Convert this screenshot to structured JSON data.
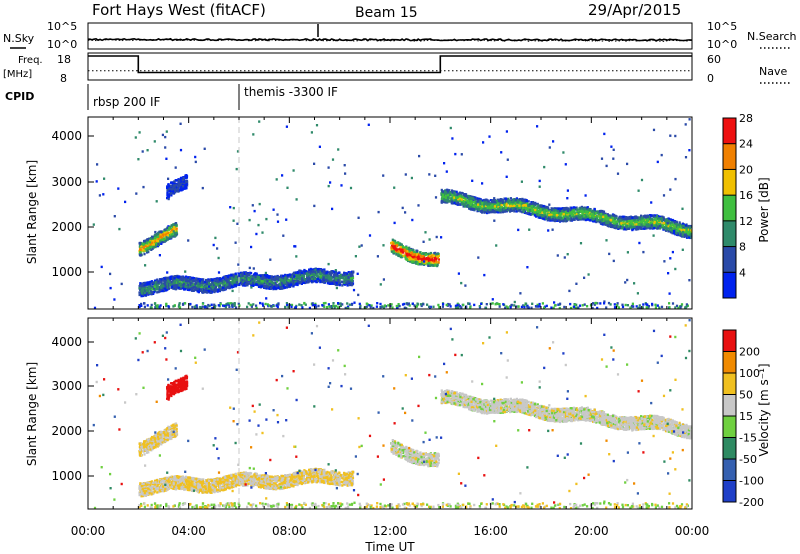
{
  "header": {
    "title": "Fort Hays West (fitACF)",
    "beam": "Beam 15",
    "date": "29/Apr/2015"
  },
  "noise_panel": {
    "left_label": "N.Sky",
    "right_label": "N.Search",
    "left_ticks": [
      "10^5",
      "10^0"
    ],
    "right_ticks": [
      "10^5",
      "10^0"
    ]
  },
  "freq_panel": {
    "left_label_1": "Freq.",
    "left_label_2": "[MHz]",
    "right_label": "Nave",
    "left_ticks": [
      "18",
      "8"
    ],
    "right_ticks": [
      "60",
      "0"
    ]
  },
  "cpid": {
    "label": "CPID",
    "segments": [
      {
        "name": "rbsp 200 IF",
        "start_hour": 0
      },
      {
        "name": "themis -3300 IF",
        "start_hour": 6
      }
    ]
  },
  "x_axis": {
    "label": "Time UT",
    "ticks": [
      "00:00",
      "04:00",
      "08:00",
      "12:00",
      "16:00",
      "20:00",
      "00:00"
    ]
  },
  "power_panel": {
    "ylabel": "Slant Range [km]",
    "yticks": [
      "1000",
      "2000",
      "3000",
      "4000"
    ],
    "colorbar_label": "Power [dB]",
    "colorbar_ticks": [
      "4",
      "8",
      "12",
      "16",
      "20",
      "24",
      "28"
    ],
    "colors": [
      "#0022ee",
      "#2a4aa8",
      "#2f8a6a",
      "#3fbf3f",
      "#f0c000",
      "#f08000",
      "#ee1010"
    ]
  },
  "velocity_panel": {
    "ylabel": "Slant Range [km]",
    "yticks": [
      "1000",
      "2000",
      "3000",
      "4000"
    ],
    "colorbar_label": "Velocity [m s⁻¹]",
    "colorbar_ticks": [
      "200",
      "100",
      "50",
      "15",
      "-15",
      "-50",
      "-100",
      "-200"
    ],
    "colors": [
      "#1f3fc8",
      "#3560b0",
      "#2e8a62",
      "#6fd040",
      "#c8c8c8",
      "#f0c020",
      "#f08a00",
      "#e81010"
    ]
  },
  "chart_data": {
    "type": "heatmap",
    "x_range_hours": [
      0,
      24
    ],
    "y_range_km": [
      180,
      4500
    ],
    "noise_panel": {
      "n_sky_log10_start": 1.7,
      "n_sky_log10_end": 1.6,
      "n_search_log10_start": 1.6,
      "n_search_log10_end": 1.4
    },
    "frequency_mhz": [
      {
        "start_hour": 0,
        "end_hour": 2,
        "value": 18
      },
      {
        "start_hour": 2,
        "end_hour": 14,
        "value": 10.5
      },
      {
        "start_hour": 14,
        "end_hour": 24,
        "value": 18
      }
    ],
    "nave": [
      {
        "start_hour": 0,
        "end_hour": 24,
        "value": 20
      }
    ],
    "scatter_features": [
      {
        "name": "near-range band",
        "t_start": 2.0,
        "t_end": 10.5,
        "r_start_km": 700,
        "r_end_km": 950,
        "power_db": 8,
        "velocity_ms": -15
      },
      {
        "name": "mid-range band early",
        "t_start": 2.0,
        "t_end": 3.5,
        "r_start_km": 1600,
        "r_end_km": 1950,
        "power_db": 16,
        "velocity_ms": -15
      },
      {
        "name": "far patch early",
        "t_start": 3.1,
        "t_end": 3.9,
        "r_start_km": 2800,
        "r_end_km": 3050,
        "power_db": 4,
        "velocity_ms": -200
      },
      {
        "name": "pre-noon patch",
        "t_start": 12.0,
        "t_end": 13.9,
        "r_start_km": 1600,
        "r_end_km": 1280,
        "power_db": 22,
        "velocity_ms": 0
      },
      {
        "name": "afternoon band",
        "t_start": 14.0,
        "t_end": 24.0,
        "r_start_km": 2700,
        "r_end_km": 2000,
        "power_db": 12,
        "velocity_ms": 0
      }
    ]
  }
}
